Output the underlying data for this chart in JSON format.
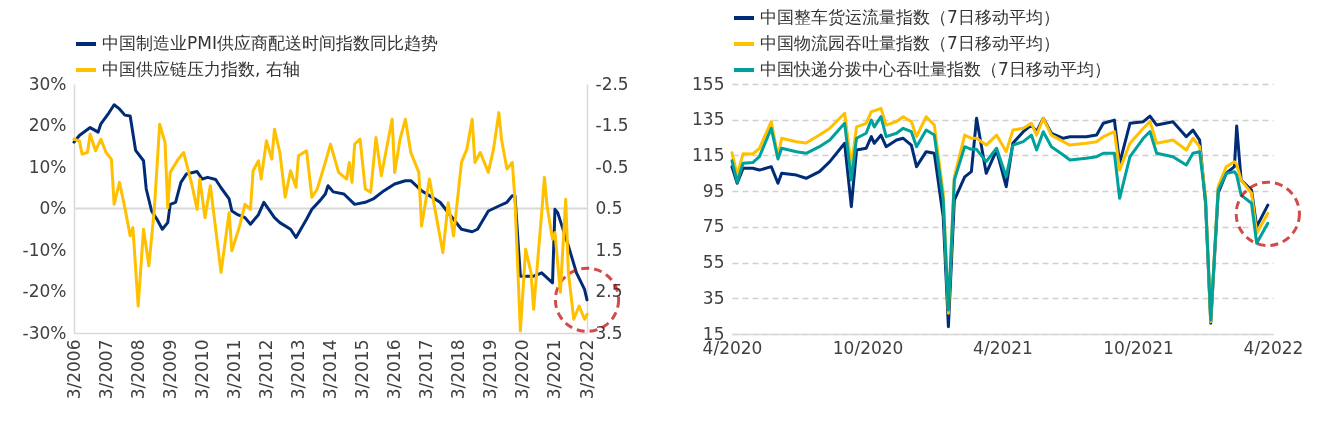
{
  "chart_data": [
    {
      "type": "line",
      "legend": "top",
      "grid": false,
      "xlim": [
        "2006-03",
        "2022-03"
      ],
      "xticks": [
        {
          "value": "2006-03",
          "label": "3/2006"
        },
        {
          "value": "2007-03",
          "label": "3/2007"
        },
        {
          "value": "2008-03",
          "label": "3/2008"
        },
        {
          "value": "2009-03",
          "label": "3/2009"
        },
        {
          "value": "2010-03",
          "label": "3/2010"
        },
        {
          "value": "2011-03",
          "label": "3/2011"
        },
        {
          "value": "2012-03",
          "label": "3/2012"
        },
        {
          "value": "2013-03",
          "label": "3/2013"
        },
        {
          "value": "2014-03",
          "label": "3/2014"
        },
        {
          "value": "2015-03",
          "label": "3/2015"
        },
        {
          "value": "2016-03",
          "label": "3/2016"
        },
        {
          "value": "2017-03",
          "label": "3/2017"
        },
        {
          "value": "2018-03",
          "label": "3/2018"
        },
        {
          "value": "2019-03",
          "label": "3/2019"
        },
        {
          "value": "2020-03",
          "label": "3/2020"
        },
        {
          "value": "2021-03",
          "label": "3/2021"
        },
        {
          "value": "2022-03",
          "label": "3/2022"
        }
      ],
      "ylim": [
        -30,
        30
      ],
      "yticks": [
        {
          "value": 30,
          "label": "30%"
        },
        {
          "value": 20,
          "label": "20%"
        },
        {
          "value": 10,
          "label": "10%"
        },
        {
          "value": 0,
          "label": "0%"
        },
        {
          "value": -10,
          "label": "-10%"
        },
        {
          "value": -20,
          "label": "-20%"
        },
        {
          "value": -30,
          "label": "-30%"
        }
      ],
      "y2lim": [
        3.5,
        -2.5
      ],
      "y2ticks": [
        -2.5,
        -1.5,
        -0.5,
        0.5,
        1.5,
        2.5,
        3.5
      ],
      "ref_lines": [
        {
          "axis": "y",
          "value": 0,
          "color": "#d9d9d9"
        }
      ],
      "series": [
        {
          "name": "中国制造业PMI供应商配送时间指数同比趋势",
          "color": "#002c77",
          "x": [
            "2006-03",
            "2006-05",
            "2006-09",
            "2006-12",
            "2007-01",
            "2007-04",
            "2007-06",
            "2007-08",
            "2007-10",
            "2007-12",
            "2008-02",
            "2008-05",
            "2008-06",
            "2008-08",
            "2008-10",
            "2008-12",
            "2009-02",
            "2009-03",
            "2009-05",
            "2009-07",
            "2009-09",
            "2010-01",
            "2010-03",
            "2010-05",
            "2010-08",
            "2010-10",
            "2011-01",
            "2011-02",
            "2011-04",
            "2011-07",
            "2011-09",
            "2011-12",
            "2012-02",
            "2012-06",
            "2012-08",
            "2012-12",
            "2013-02",
            "2013-06",
            "2013-08",
            "2013-11",
            "2014-01",
            "2014-02",
            "2014-04",
            "2014-08",
            "2014-12",
            "2015-04",
            "2015-07",
            "2015-11",
            "2016-03",
            "2016-07",
            "2016-09",
            "2017-01",
            "2017-04",
            "2017-08",
            "2017-12",
            "2018-04",
            "2018-08",
            "2018-10",
            "2019-02",
            "2019-06",
            "2019-09",
            "2019-11",
            "2019-12",
            "2020-02",
            "2020-07",
            "2020-10",
            "2021-02",
            "2021-03",
            "2021-04",
            "2021-08",
            "2021-11",
            "2022-02",
            "2022-03"
          ],
          "values": [
            16,
            17.6,
            19.5,
            18.4,
            20.4,
            23,
            25,
            24,
            22.5,
            22.3,
            14,
            11.5,
            4.7,
            -0.6,
            -2.6,
            -5,
            -3.4,
            1,
            1.5,
            6.3,
            8.3,
            8.9,
            7.1,
            7.5,
            7,
            5,
            2.3,
            -0.6,
            -1.4,
            -2.2,
            -3.8,
            -1.5,
            1.5,
            -2.2,
            -3.4,
            -5,
            -7,
            -2.6,
            -0.2,
            1.9,
            3.5,
            5.5,
            4,
            3.5,
            1,
            1.5,
            2.3,
            4.3,
            5.9,
            6.7,
            6.7,
            4.3,
            3.1,
            1.5,
            -1.8,
            -5,
            -5.6,
            -5,
            -0.6,
            0.6,
            1.5,
            3.1,
            3.1,
            -16.3,
            -16.3,
            -15.5,
            -17.9,
            -0.2,
            -1,
            -9,
            -15.5,
            -19.5,
            -22
          ]
        },
        {
          "name": "中国供应链压力指数, 右轴",
          "color": "#ffc000",
          "axis": "y2",
          "x": [
            "2006-03",
            "2006-05",
            "2006-06",
            "2006-08",
            "2006-09",
            "2006-11",
            "2007-01",
            "2007-03",
            "2007-05",
            "2007-06",
            "2007-08",
            "2007-10",
            "2007-12",
            "2008-01",
            "2008-03",
            "2008-05",
            "2008-07",
            "2008-09",
            "2008-11",
            "2009-01",
            "2009-02",
            "2009-03",
            "2009-06",
            "2009-08",
            "2009-11",
            "2010-01",
            "2010-02",
            "2010-04",
            "2010-06",
            "2010-10",
            "2011-01",
            "2011-02",
            "2011-05",
            "2011-07",
            "2011-09",
            "2011-10",
            "2011-12",
            "2012-01",
            "2012-03",
            "2012-05",
            "2012-06",
            "2012-08",
            "2012-10",
            "2012-12",
            "2013-02",
            "2013-03",
            "2013-06",
            "2013-08",
            "2013-10",
            "2014-01",
            "2014-03",
            "2014-06",
            "2014-09",
            "2014-10",
            "2014-11",
            "2014-12",
            "2015-02",
            "2015-04",
            "2015-06",
            "2015-08",
            "2015-10",
            "2016-02",
            "2016-03",
            "2016-05",
            "2016-07",
            "2016-09",
            "2016-12",
            "2017-01",
            "2017-04",
            "2017-07",
            "2017-09",
            "2017-11",
            "2018-01",
            "2018-04",
            "2018-06",
            "2018-08",
            "2018-09",
            "2018-11",
            "2019-02",
            "2019-04",
            "2019-06",
            "2019-07",
            "2019-09",
            "2019-11",
            "2019-12",
            "2020-02",
            "2020-04",
            "2020-06",
            "2020-07",
            "2020-10",
            "2020-11",
            "2020-12",
            "2021-02",
            "2021-03",
            "2021-05",
            "2021-07",
            "2021-08",
            "2021-10",
            "2021-12",
            "2022-02",
            "2022-03"
          ],
          "values": [
            -1.17,
            -1.13,
            -0.81,
            -0.85,
            -1.29,
            -0.89,
            -1.17,
            -0.85,
            -0.69,
            0.4,
            -0.13,
            0.48,
            1.16,
            0.96,
            2.85,
            1.0,
            1.88,
            0.52,
            -1.53,
            -1.09,
            0.48,
            -0.37,
            -0.69,
            -0.85,
            -0.09,
            0.52,
            -0.21,
            0.72,
            -0.05,
            2.04,
            0.6,
            1.52,
            0.92,
            0.4,
            0.52,
            -0.41,
            -0.65,
            -0.21,
            -1.13,
            -0.69,
            -1.41,
            -0.85,
            0.23,
            -0.41,
            -0.01,
            -0.77,
            -0.89,
            0.23,
            0.03,
            -0.61,
            -1.05,
            -0.37,
            -0.21,
            -0.61,
            -0.13,
            -1.05,
            -1.17,
            0.03,
            0.11,
            -1.21,
            -0.29,
            -1.65,
            -0.37,
            -1.17,
            -1.65,
            -0.85,
            -0.37,
            0.92,
            -0.21,
            0.84,
            1.56,
            0.36,
            1.16,
            -0.61,
            -0.93,
            -1.65,
            -0.61,
            -0.85,
            -0.37,
            -0.93,
            -1.81,
            -1.17,
            -0.45,
            -0.61,
            0.28,
            3.45,
            1.48,
            2.04,
            2.93,
            0.6,
            -0.25,
            0.44,
            1.24,
            1.08,
            2.52,
            0.28,
            2.04,
            3.17,
            2.85,
            3.17,
            3.05
          ]
        }
      ]
    },
    {
      "type": "line",
      "legend": "top",
      "grid": "y",
      "xlim": [
        "2020-04-01",
        "2022-04-01"
      ],
      "xticks": [
        {
          "value": "2020-04-01",
          "label": "4/2020"
        },
        {
          "value": "2020-10-01",
          "label": "10/2020"
        },
        {
          "value": "2021-04-01",
          "label": "4/2021"
        },
        {
          "value": "2021-10-01",
          "label": "10/2021"
        },
        {
          "value": "2022-04-01",
          "label": "4/2022"
        }
      ],
      "ylim": [
        15,
        155
      ],
      "yticks": [
        15,
        35,
        55,
        75,
        95,
        115,
        135,
        155
      ],
      "x": [
        "2020-04-01",
        "2020-04-08",
        "2020-04-16",
        "2020-04-29",
        "2020-05-08",
        "2020-05-24",
        "2020-06-02",
        "2020-06-07",
        "2020-06-27",
        "2020-07-10",
        "2020-07-28",
        "2020-08-11",
        "2020-08-31",
        "2020-09-09",
        "2020-09-16",
        "2020-09-29",
        "2020-10-06",
        "2020-10-10",
        "2020-10-19",
        "2020-10-26",
        "2020-11-09",
        "2020-11-18",
        "2020-11-29",
        "2020-12-06",
        "2020-12-19",
        "2020-12-30",
        "2021-01-11",
        "2021-01-18",
        "2021-01-26",
        "2021-02-09",
        "2021-02-18",
        "2021-02-25",
        "2021-03-10",
        "2021-03-24",
        "2021-04-06",
        "2021-04-15",
        "2021-04-29",
        "2021-05-10",
        "2021-05-17",
        "2021-05-26",
        "2021-06-06",
        "2021-06-22",
        "2021-07-01",
        "2021-07-23",
        "2021-08-06",
        "2021-08-15",
        "2021-08-30",
        "2021-09-06",
        "2021-09-20",
        "2021-10-08",
        "2021-10-17",
        "2021-10-26",
        "2021-11-17",
        "2021-12-05",
        "2021-12-14",
        "2021-12-23",
        "2021-12-31",
        "2022-01-07",
        "2022-01-17",
        "2022-01-28",
        "2022-02-08",
        "2022-02-11",
        "2022-02-17",
        "2022-03-03",
        "2022-03-10",
        "2022-03-25"
      ],
      "series": [
        {
          "name": "中国整车货运流量指数（7日移动平均）",
          "color": "#002c77",
          "values": [
            108.7,
            99.4,
            107.8,
            107.8,
            106.8,
            108.7,
            99.4,
            105,
            104,
            102.2,
            105.9,
            111.5,
            121.8,
            86.3,
            118,
            119,
            125.5,
            121.8,
            126.4,
            119.9,
            123.6,
            124.6,
            120.8,
            108.7,
            117.1,
            116.2,
            80.7,
            19.1,
            90,
            103,
            105.9,
            135.8,
            105,
            118,
            97.5,
            121.8,
            128.3,
            132,
            128.3,
            135.8,
            127.4,
            124.6,
            125.5,
            125.5,
            126.4,
            133,
            134.8,
            110.6,
            133,
            133.9,
            137,
            132,
            133.9,
            125.5,
            129.2,
            123.6,
            88,
            21,
            93.8,
            105,
            108.7,
            131.5,
            101.2,
            95.6,
            75.1,
            87.2
          ]
        },
        {
          "name": "中国物流园吞吐量指数（7日移动平均）",
          "color": "#ffc000",
          "values": [
            116.5,
            104,
            116,
            115.8,
            119,
            134,
            114.3,
            124.6,
            122.7,
            122,
            126.4,
            130.2,
            138.6,
            108.7,
            131,
            133,
            139.5,
            140,
            141.4,
            132,
            134,
            136.7,
            134,
            125.5,
            136.7,
            132,
            93.8,
            26.6,
            103,
            126.4,
            124.6,
            124.6,
            120.8,
            126.4,
            117.1,
            129.2,
            130.2,
            133,
            126.4,
            135.8,
            126.4,
            122.7,
            120.8,
            121.8,
            122.7,
            125.5,
            128.3,
            106.8,
            121.8,
            130.2,
            134,
            121.8,
            123.6,
            118,
            124.6,
            119.9,
            92,
            21.9,
            97.5,
            108.7,
            111.5,
            110,
            101.2,
            93.8,
            71.4,
            82.6
          ]
        },
        {
          "name": "中国快递分拨中心吞吐量指数（7日移动平均）",
          "color": "#00a19a",
          "values": [
            112,
            100,
            110.6,
            111,
            114.3,
            130.2,
            113,
            119,
            117.1,
            116.2,
            119.9,
            123.6,
            133,
            101.2,
            124.6,
            127.4,
            134.8,
            131,
            136.7,
            125.5,
            127.4,
            130.2,
            128.3,
            119.9,
            129.2,
            126.4,
            90,
            28.4,
            101.2,
            119.9,
            118.4,
            118.4,
            111.5,
            119,
            103.1,
            120.8,
            122.7,
            126.4,
            118,
            128.3,
            119.9,
            115.2,
            112.4,
            113.4,
            114.3,
            116.2,
            116.2,
            91,
            114.3,
            124.6,
            128.3,
            116.2,
            114.3,
            109.6,
            116.2,
            117.1,
            90,
            22.8,
            95.6,
            105,
            105.9,
            104,
            92.8,
            88.2,
            65.8,
            77
          ]
        }
      ]
    }
  ]
}
